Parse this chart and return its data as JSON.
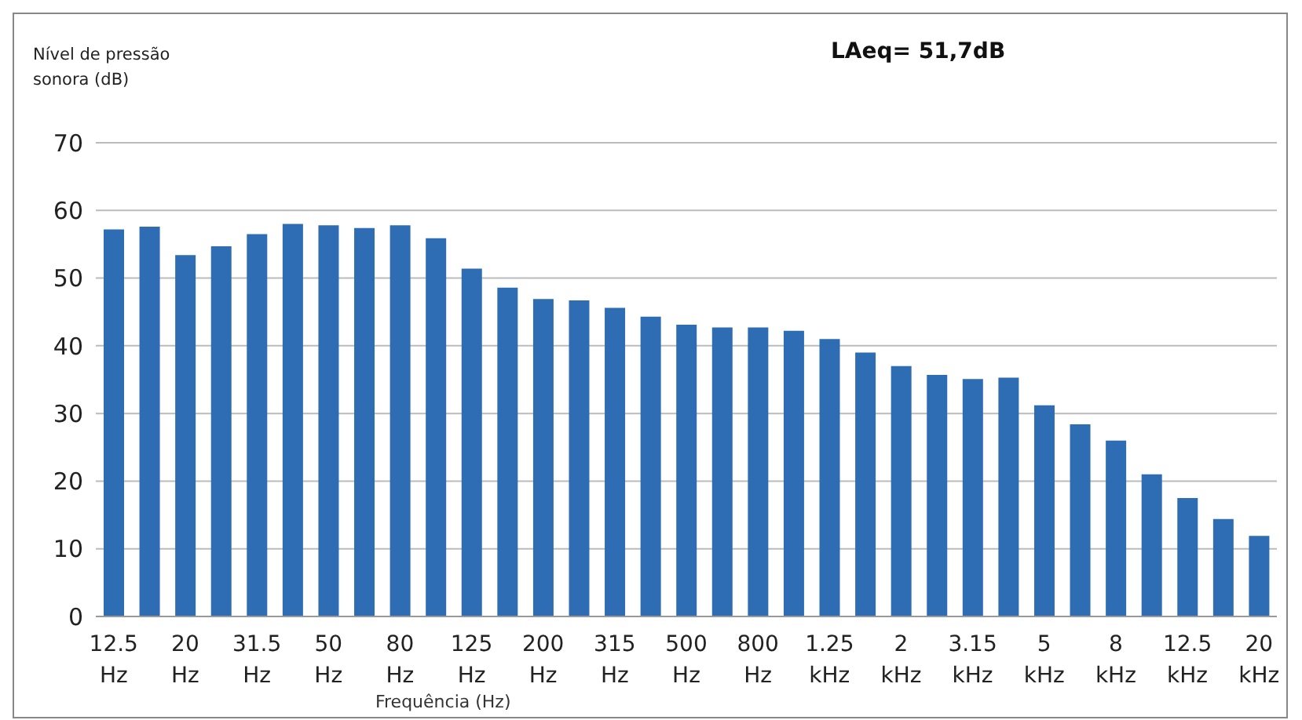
{
  "chart_data": {
    "type": "bar",
    "title": "LAeq= 51,7dB",
    "ylabel": "Nível de pressão sonora (dB)",
    "xlabel": "Frequência (Hz)",
    "categories": [
      "12.5 Hz",
      null,
      "20 Hz",
      null,
      "31.5 Hz",
      null,
      "50 Hz",
      null,
      "80 Hz",
      null,
      "125 Hz",
      null,
      "200 Hz",
      null,
      "315 Hz",
      null,
      "500 Hz",
      null,
      "800 Hz",
      null,
      "1.25 kHz",
      null,
      "2 kHz",
      null,
      "3.15 kHz",
      null,
      "5 kHz",
      null,
      "8 kHz",
      null,
      "12.5 kHz",
      null,
      "20 kHz"
    ],
    "values": [
      57.2,
      57.6,
      53.4,
      54.7,
      56.5,
      58.0,
      57.8,
      57.4,
      57.8,
      55.9,
      51.4,
      48.6,
      46.9,
      46.7,
      45.6,
      44.3,
      43.1,
      42.7,
      42.7,
      42.2,
      41.0,
      39.0,
      37.0,
      35.7,
      35.1,
      35.3,
      31.2,
      28.4,
      26.0,
      21.0,
      17.5,
      14.4,
      11.9
    ],
    "color": "#2e6db4",
    "ylim": [
      0,
      70
    ],
    "yticks": [
      0,
      10,
      20,
      30,
      40,
      50,
      60,
      70
    ],
    "grid": "y"
  }
}
